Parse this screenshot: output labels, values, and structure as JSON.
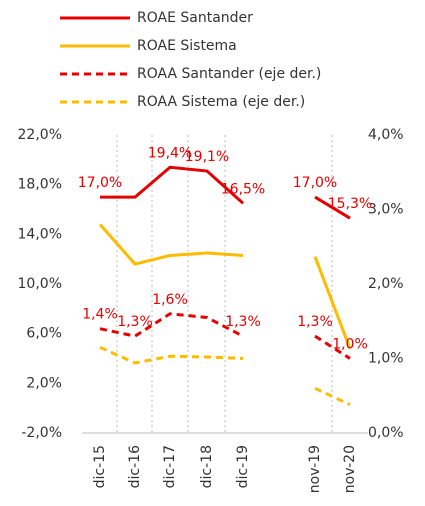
{
  "chart_data": {
    "type": "line",
    "categories": [
      "dic-15",
      "dic-16",
      "dic-17",
      "dic-18",
      "dic-19",
      null,
      "nov-19",
      "nov-20"
    ],
    "series": [
      {
        "name": "ROAE Santander",
        "color": "#e60000",
        "dash": false,
        "axis": "y",
        "values": [
          17.0,
          17.0,
          19.4,
          19.1,
          16.5,
          null,
          17.0,
          15.3
        ],
        "value_labels": [
          "17,0%",
          null,
          "19,4%",
          "19,1%",
          "16,5%",
          null,
          "17,0%",
          "15,3%"
        ]
      },
      {
        "name": "ROAE Sistema",
        "color": "#ffbb00",
        "dash": false,
        "axis": "y",
        "values": [
          14.8,
          11.6,
          12.3,
          12.5,
          12.3,
          null,
          12.2,
          4.8
        ]
      },
      {
        "name": "ROAA Santander (eje der.)",
        "color": "#e60000",
        "dash": true,
        "axis": "y2",
        "values": [
          1.4,
          1.3,
          1.6,
          1.55,
          1.3,
          null,
          1.3,
          1.0
        ],
        "value_labels": [
          "1,4%",
          "1,3%",
          "1,6%",
          null,
          "1,3%",
          null,
          "1,3%",
          "1,0%"
        ]
      },
      {
        "name": "ROAA Sistema (eje der.)",
        "color": "#ffbb00",
        "dash": true,
        "axis": "y2",
        "values": [
          1.15,
          0.94,
          1.03,
          1.02,
          1.0,
          null,
          0.6,
          0.38
        ]
      }
    ],
    "ylim": [
      -2,
      22
    ],
    "yticks": [
      {
        "value": -2,
        "label": "-2,0%"
      },
      {
        "value": 2,
        "label": "2,0%"
      },
      {
        "value": 6,
        "label": "6,0%"
      },
      {
        "value": 10,
        "label": "10,0%"
      },
      {
        "value": 14,
        "label": "14,0%"
      },
      {
        "value": 18,
        "label": "18,0%"
      },
      {
        "value": 22,
        "label": "22,0%"
      }
    ],
    "y2lim": [
      0,
      4
    ],
    "y2ticks": [
      {
        "value": 0,
        "label": "0,0%"
      },
      {
        "value": 1,
        "label": "1,0%"
      },
      {
        "value": 2,
        "label": "2,0%"
      },
      {
        "value": 3,
        "label": "3,0%"
      },
      {
        "value": 4,
        "label": "4,0%"
      }
    ],
    "grid": false
  }
}
